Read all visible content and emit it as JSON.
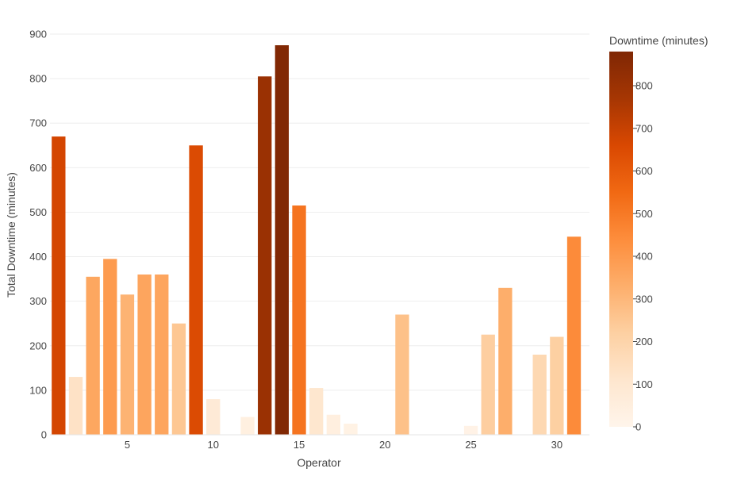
{
  "chart_data": {
    "type": "bar",
    "xlabel": "Operator",
    "ylabel": "Total Downtime (minutes)",
    "x": [
      1,
      2,
      3,
      4,
      5,
      6,
      7,
      8,
      9,
      10,
      11,
      12,
      13,
      14,
      15,
      16,
      17,
      18,
      19,
      20,
      21,
      22,
      23,
      24,
      25,
      26,
      27,
      28,
      29,
      30,
      31
    ],
    "values": [
      670,
      130,
      355,
      395,
      315,
      360,
      360,
      250,
      650,
      80,
      0,
      40,
      805,
      875,
      515,
      105,
      45,
      25,
      0,
      0,
      270,
      0,
      0,
      0,
      20,
      225,
      330,
      0,
      180,
      220,
      445
    ],
    "xlim": [
      0.5,
      31.9
    ],
    "ylim": [
      0,
      900
    ],
    "x_ticks": [
      5,
      10,
      15,
      20,
      25,
      30
    ],
    "y_ticks": [
      0,
      100,
      200,
      300,
      400,
      500,
      600,
      700,
      800,
      900
    ],
    "grid": "horizontal",
    "colorbar": {
      "title": "Downtime (minutes)",
      "range": [
        0,
        880
      ],
      "ticks": [
        0,
        100,
        200,
        300,
        400,
        500,
        600,
        700,
        800
      ],
      "colorscale": "Oranges",
      "stops": [
        "#fff5eb",
        "#fee6ce",
        "#fdd0a2",
        "#fdae6b",
        "#fd8d3c",
        "#f16913",
        "#d94801",
        "#a63603",
        "#7f2704"
      ]
    }
  }
}
